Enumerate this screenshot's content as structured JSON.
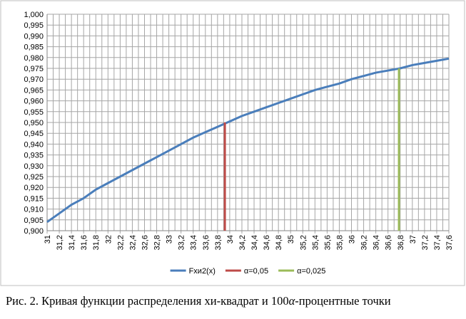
{
  "chart_data": {
    "type": "line",
    "xlim": [
      31,
      37.6
    ],
    "ylim": [
      0.9,
      1.0
    ],
    "grid": true,
    "legend": "bottom",
    "xticks": [
      {
        "value": 31,
        "label": "31"
      },
      {
        "value": 31.2,
        "label": "31,2"
      },
      {
        "value": 31.4,
        "label": "31,4"
      },
      {
        "value": 31.6,
        "label": "31,6"
      },
      {
        "value": 31.8,
        "label": "31,8"
      },
      {
        "value": 32,
        "label": "32"
      },
      {
        "value": 32.2,
        "label": "32,2"
      },
      {
        "value": 32.4,
        "label": "32,4"
      },
      {
        "value": 32.6,
        "label": "32,6"
      },
      {
        "value": 32.8,
        "label": "32,8"
      },
      {
        "value": 33,
        "label": "33"
      },
      {
        "value": 33.2,
        "label": "33,2"
      },
      {
        "value": 33.4,
        "label": "33,4"
      },
      {
        "value": 33.6,
        "label": "33,6"
      },
      {
        "value": 33.8,
        "label": "33,8"
      },
      {
        "value": 34,
        "label": "34"
      },
      {
        "value": 34.2,
        "label": "34,2"
      },
      {
        "value": 34.4,
        "label": "34,4"
      },
      {
        "value": 34.6,
        "label": "34,6"
      },
      {
        "value": 34.8,
        "label": "34,8"
      },
      {
        "value": 35,
        "label": "35"
      },
      {
        "value": 35.2,
        "label": "35,2"
      },
      {
        "value": 35.4,
        "label": "35,4"
      },
      {
        "value": 35.6,
        "label": "35,6"
      },
      {
        "value": 35.8,
        "label": "35,8"
      },
      {
        "value": 36,
        "label": "36"
      },
      {
        "value": 36.2,
        "label": "36,2"
      },
      {
        "value": 36.4,
        "label": "36,4"
      },
      {
        "value": 36.6,
        "label": "36,6"
      },
      {
        "value": 36.8,
        "label": "36,8"
      },
      {
        "value": 37,
        "label": "37"
      },
      {
        "value": 37.2,
        "label": "37,2"
      },
      {
        "value": 37.4,
        "label": "37,4"
      },
      {
        "value": 37.6,
        "label": "37,6"
      }
    ],
    "x_minor_ticks": [
      31.1,
      31.3,
      31.5,
      31.7,
      31.9,
      32.1,
      32.3,
      32.5,
      32.7,
      32.9,
      33.1,
      33.3,
      33.5,
      33.7,
      33.9,
      34.1,
      34.3,
      34.5,
      34.7,
      34.9,
      35.1,
      35.3,
      35.5,
      35.7,
      35.9,
      36.1,
      36.3,
      36.5,
      36.7,
      36.9,
      37.1,
      37.3,
      37.5
    ],
    "yticks": [
      {
        "value": 0.9,
        "label": "0,900"
      },
      {
        "value": 0.905,
        "label": "0,905"
      },
      {
        "value": 0.91,
        "label": "0,910"
      },
      {
        "value": 0.915,
        "label": "0,915"
      },
      {
        "value": 0.92,
        "label": "0,920"
      },
      {
        "value": 0.925,
        "label": "0,925"
      },
      {
        "value": 0.93,
        "label": "0,930"
      },
      {
        "value": 0.935,
        "label": "0,935"
      },
      {
        "value": 0.94,
        "label": "0,940"
      },
      {
        "value": 0.945,
        "label": "0,945"
      },
      {
        "value": 0.95,
        "label": "0,950"
      },
      {
        "value": 0.955,
        "label": "0,955"
      },
      {
        "value": 0.96,
        "label": "0,960"
      },
      {
        "value": 0.965,
        "label": "0,965"
      },
      {
        "value": 0.97,
        "label": "0,970"
      },
      {
        "value": 0.975,
        "label": "0,975"
      },
      {
        "value": 0.98,
        "label": "0,980"
      },
      {
        "value": 0.985,
        "label": "0,985"
      },
      {
        "value": 0.99,
        "label": "0,990"
      },
      {
        "value": 0.995,
        "label": "0,995"
      },
      {
        "value": 1.0,
        "label": "1,000"
      }
    ],
    "series": [
      {
        "name": "Fхи2(x)",
        "color": "#4a7ebb",
        "x": [
          31,
          31.2,
          31.4,
          31.6,
          31.8,
          32,
          32.2,
          32.4,
          32.6,
          32.8,
          33,
          33.2,
          33.4,
          33.6,
          33.8,
          34,
          34.2,
          34.4,
          34.6,
          34.8,
          35,
          35.2,
          35.4,
          35.6,
          35.8,
          36,
          36.2,
          36.4,
          36.6,
          36.8,
          37,
          37.2,
          37.4,
          37.6
        ],
        "values": [
          0.904,
          0.908,
          0.912,
          0.915,
          0.919,
          0.922,
          0.925,
          0.928,
          0.931,
          0.934,
          0.937,
          0.94,
          0.943,
          0.9455,
          0.948,
          0.9505,
          0.953,
          0.955,
          0.957,
          0.959,
          0.961,
          0.963,
          0.965,
          0.9665,
          0.968,
          0.97,
          0.9715,
          0.973,
          0.974,
          0.975,
          0.9765,
          0.9775,
          0.9785,
          0.9795
        ]
      },
      {
        "name": "α=0,05",
        "color": "#be4b48",
        "x": [
          33.92,
          33.92
        ],
        "values": [
          0.9,
          0.95
        ]
      },
      {
        "name": "α=0,025",
        "color": "#9bbb59",
        "x": [
          36.78,
          36.78
        ],
        "values": [
          0.9,
          0.975
        ]
      }
    ]
  },
  "caption": {
    "before": "Рис. 2. Кривая функции распределения хи-квадрат и 100",
    "symbol": "α",
    "after": "-процентные точки"
  }
}
